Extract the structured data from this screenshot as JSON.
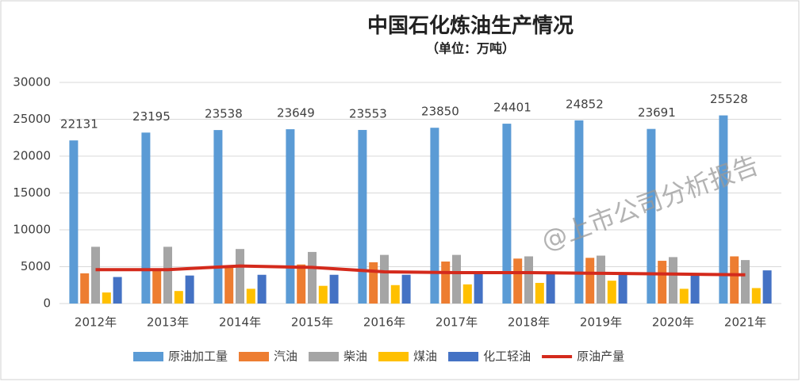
{
  "chart_data": {
    "type": "bar",
    "title": "中国石化炼油生产情况",
    "subtitle": "（单位：万吨）",
    "watermark": "@上市公司分析报告",
    "categories": [
      "2012年",
      "2013年",
      "2014年",
      "2015年",
      "2016年",
      "2017年",
      "2018年",
      "2019年",
      "2020年",
      "2021年"
    ],
    "ylim": [
      0,
      30000
    ],
    "yticks": [
      0,
      5000,
      10000,
      15000,
      20000,
      25000,
      30000
    ],
    "grid": true,
    "legend": "bottom",
    "series": [
      {
        "name": "原油加工量",
        "color": "#5b9bd5",
        "values": [
          22131,
          23195,
          23538,
          23649,
          23553,
          23850,
          24401,
          24852,
          23691,
          25528
        ]
      },
      {
        "name": "汽油",
        "color": "#ed7d31",
        "values": [
          4100,
          4700,
          5000,
          5300,
          5600,
          5700,
          6100,
          6200,
          5800,
          6400
        ]
      },
      {
        "name": "柴油",
        "color": "#a5a5a5",
        "values": [
          7700,
          7700,
          7400,
          7000,
          6600,
          6600,
          6400,
          6500,
          6300,
          5900
        ]
      },
      {
        "name": "煤油",
        "color": "#ffc000",
        "values": [
          1500,
          1700,
          2000,
          2400,
          2500,
          2600,
          2800,
          3100,
          2000,
          2100
        ]
      },
      {
        "name": "化工轻油",
        "color": "#4472c4",
        "values": [
          3600,
          3800,
          3900,
          3900,
          3900,
          4000,
          4100,
          4100,
          4000,
          4500
        ]
      },
      {
        "name": "原油产量",
        "color": "#d42a1c",
        "type": "line",
        "values": [
          4600,
          4600,
          5100,
          4900,
          4300,
          4200,
          4200,
          4100,
          4000,
          3900
        ]
      }
    ]
  }
}
